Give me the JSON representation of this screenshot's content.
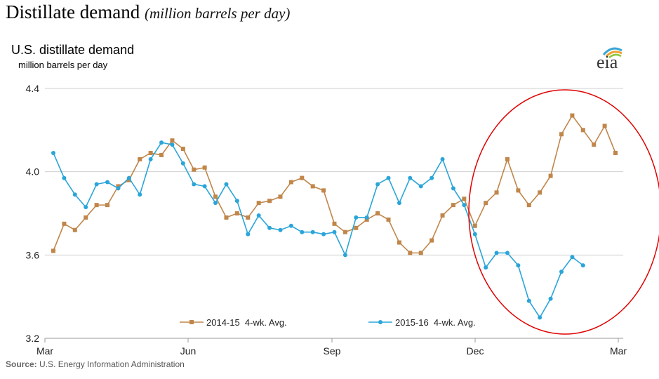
{
  "heading": {
    "title": "Distillate demand",
    "subtitle": "(million barrels per day)"
  },
  "logo": {
    "text": "eia"
  },
  "source": {
    "label": "Source:",
    "text": "U.S. Energy Information Administration"
  },
  "colors": {
    "series_2014_15": "#c0864a",
    "series_2015_16": "#2aa5d9",
    "highlight_ellipse": "#e00000",
    "gridline": "#cfcfcf",
    "axis": "#999999"
  },
  "chart_data": {
    "type": "line",
    "title": "U.S. distillate demand",
    "ylabel": "million barrels per day",
    "ylim": [
      3.2,
      4.4
    ],
    "yticks": [
      3.2,
      3.6,
      4.0,
      4.4
    ],
    "ytick_labels": [
      "3.2",
      "3.6",
      "4.0",
      "4.4"
    ],
    "xticks": [
      "Mar",
      "Jun",
      "Sep",
      "Dec",
      "Mar"
    ],
    "grid": true,
    "legend_position": "bottom",
    "annotation": "red ellipse highlighting Dec–Mar",
    "series": [
      {
        "name": "2014-15  4-wk. Avg.",
        "marker": "square",
        "values": [
          3.62,
          3.75,
          3.72,
          3.78,
          3.84,
          3.84,
          3.93,
          3.96,
          4.06,
          4.09,
          4.08,
          4.15,
          4.11,
          4.01,
          4.02,
          3.88,
          3.78,
          3.8,
          3.78,
          3.85,
          3.86,
          3.88,
          3.95,
          3.97,
          3.93,
          3.91,
          3.75,
          3.71,
          3.73,
          3.77,
          3.8,
          3.77,
          3.66,
          3.61,
          3.61,
          3.67,
          3.79,
          3.84,
          3.87,
          3.74,
          3.85,
          3.9,
          4.06,
          3.91,
          3.84,
          3.9,
          3.98,
          4.18,
          4.27,
          4.2,
          4.13,
          4.22,
          4.09
        ]
      },
      {
        "name": "2015-16  4-wk. Avg.",
        "marker": "circle",
        "values": [
          4.09,
          3.97,
          3.89,
          3.83,
          3.94,
          3.95,
          3.92,
          3.97,
          3.89,
          4.06,
          4.14,
          4.13,
          4.04,
          3.94,
          3.93,
          3.85,
          3.94,
          3.86,
          3.7,
          3.79,
          3.73,
          3.72,
          3.74,
          3.71,
          3.71,
          3.7,
          3.71,
          3.6,
          3.78,
          3.78,
          3.94,
          3.97,
          3.85,
          3.97,
          3.93,
          3.97,
          4.06,
          3.92,
          3.84,
          3.7,
          3.54,
          3.61,
          3.61,
          3.55,
          3.38,
          3.3,
          3.39,
          3.52,
          3.59,
          3.55
        ]
      }
    ]
  }
}
